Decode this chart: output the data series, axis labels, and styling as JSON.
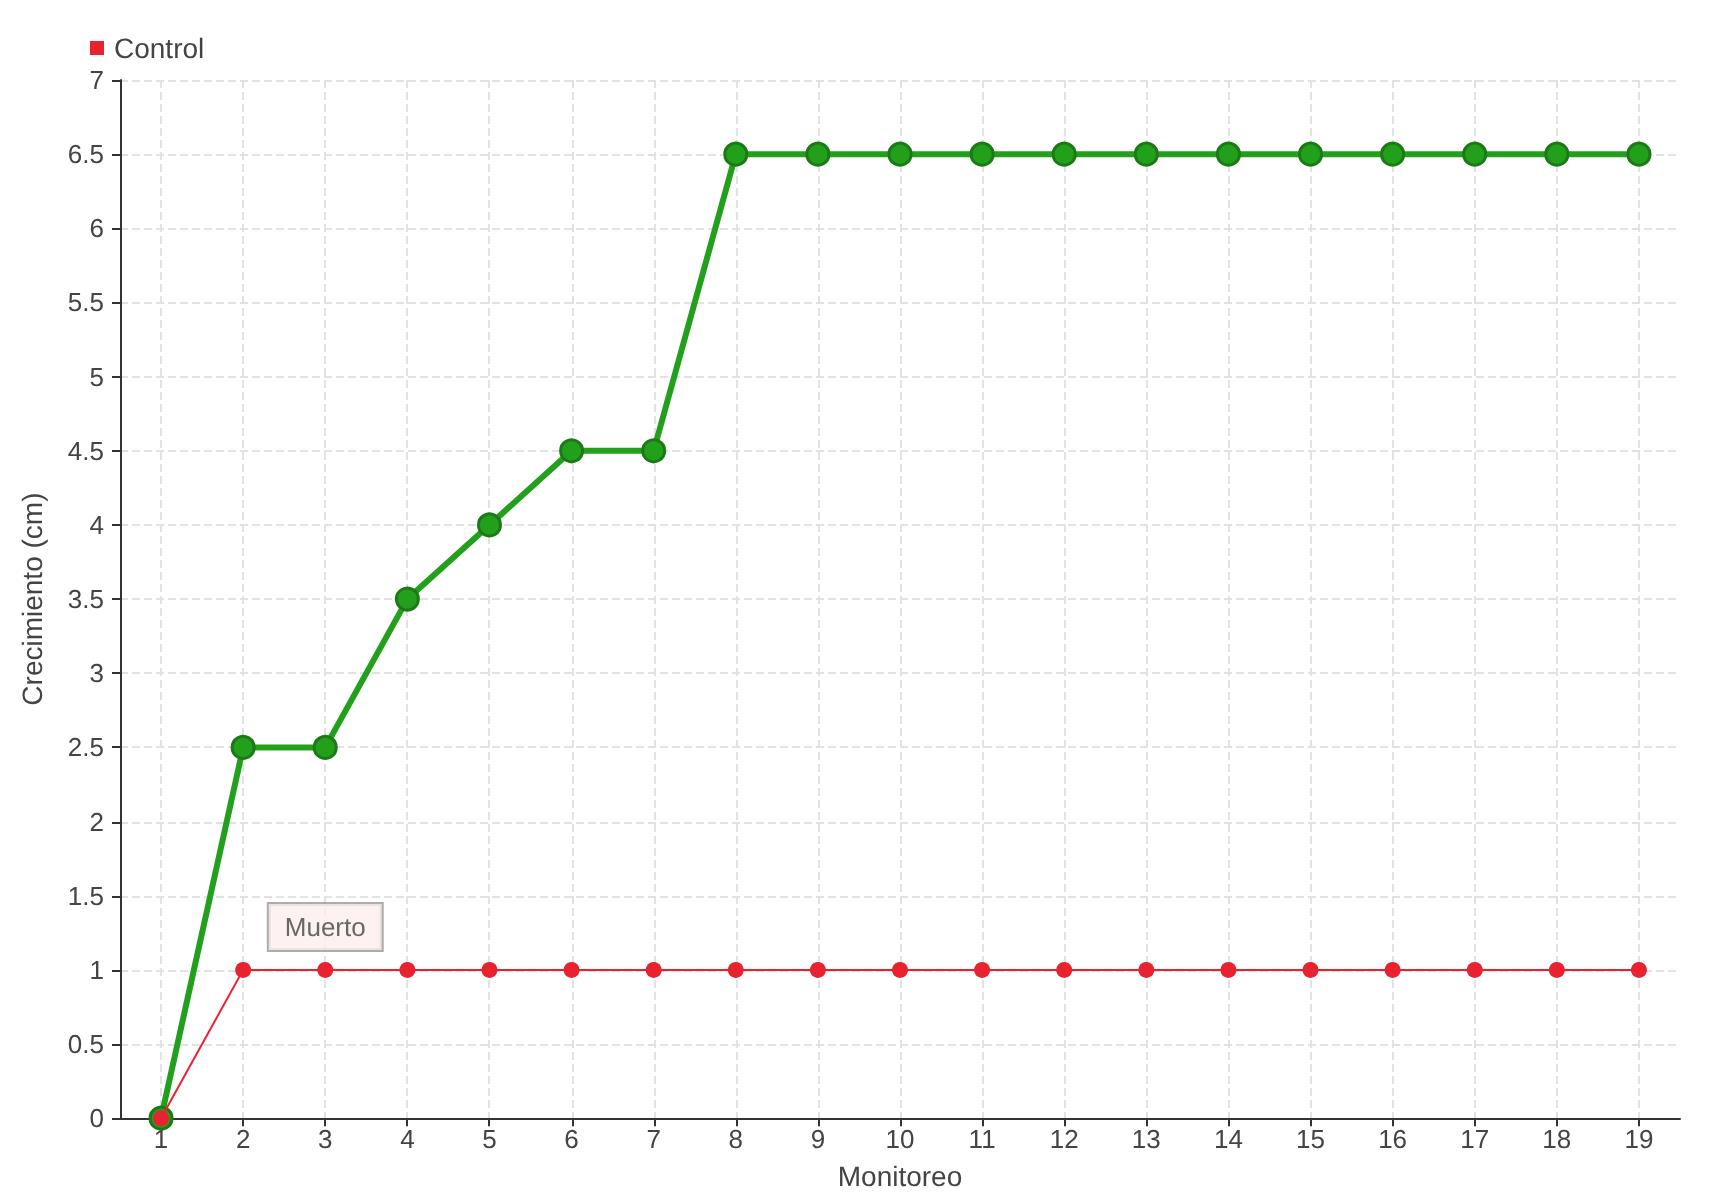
{
  "chart_data": {
    "type": "line",
    "xlabel": "Monitoreo",
    "ylabel": "Crecimiento (cm)",
    "x": [
      1,
      2,
      3,
      4,
      5,
      6,
      7,
      8,
      9,
      10,
      11,
      12,
      13,
      14,
      15,
      16,
      17,
      18,
      19
    ],
    "xlim": [
      0.5,
      19.5
    ],
    "xticks": [
      1,
      2,
      3,
      4,
      5,
      6,
      7,
      8,
      9,
      10,
      11,
      12,
      13,
      14,
      15,
      16,
      17,
      18,
      19
    ],
    "ylim": [
      0,
      7
    ],
    "yticks": [
      0,
      0.5,
      1,
      1.5,
      2,
      2.5,
      3,
      3.5,
      4,
      4.5,
      5,
      5.5,
      6,
      6.5,
      7
    ],
    "series": [
      {
        "color": "#22a01c",
        "values": [
          0,
          2.5,
          2.5,
          3.5,
          4,
          4.5,
          4.5,
          6.5,
          6.5,
          6.5,
          6.5,
          6.5,
          6.5,
          6.5,
          6.5,
          6.5,
          6.5,
          6.5,
          6.5
        ]
      },
      {
        "name": "Control",
        "color": "#e8222e",
        "values": [
          0,
          1,
          1,
          1,
          1,
          1,
          1,
          1,
          1,
          1,
          1,
          1,
          1,
          1,
          1,
          1,
          1,
          1,
          1
        ]
      }
    ],
    "annotations": [
      {
        "text": "Muerto",
        "x": 3,
        "y": 1
      }
    ],
    "grid": true,
    "legend": "top left",
    "marker": "circle",
    "line_style": "solid"
  }
}
